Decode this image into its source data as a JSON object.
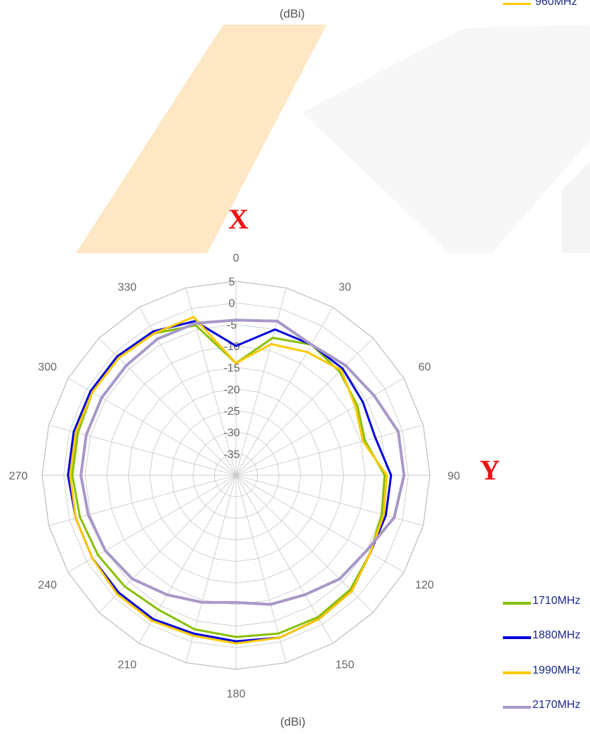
{
  "chart_data": {
    "type": "polar-line",
    "unit_label_top": "(dBi)",
    "unit_label_bottom": "(dBi)",
    "axis_marks": {
      "x": "X",
      "y": "Y"
    },
    "radial_range": [
      -40,
      5
    ],
    "radial_ticks": [
      {
        "value": 5,
        "label": "5"
      },
      {
        "value": 0,
        "label": "0"
      },
      {
        "value": -5,
        "label": "-5"
      },
      {
        "value": -10,
        "label": "-10"
      },
      {
        "value": -15,
        "label": "-15"
      },
      {
        "value": -20,
        "label": "-20"
      },
      {
        "value": -25,
        "label": "-25"
      },
      {
        "value": -30,
        "label": "-30"
      },
      {
        "value": -35,
        "label": "-35"
      }
    ],
    "angle_step": 15,
    "angle_tick_labels": [
      {
        "angle": 0,
        "label": "0"
      },
      {
        "angle": 30,
        "label": "30"
      },
      {
        "angle": 60,
        "label": "60"
      },
      {
        "angle": 90,
        "label": "90"
      },
      {
        "angle": 120,
        "label": "120"
      },
      {
        "angle": 150,
        "label": "150"
      },
      {
        "angle": 180,
        "label": "180"
      },
      {
        "angle": 210,
        "label": "210"
      },
      {
        "angle": 240,
        "label": "240"
      },
      {
        "angle": 270,
        "label": "270"
      },
      {
        "angle": 300,
        "label": "300"
      },
      {
        "angle": 330,
        "label": "330"
      }
    ],
    "angles": [
      0,
      15,
      30,
      45,
      60,
      75,
      90,
      105,
      120,
      135,
      150,
      165,
      180,
      195,
      210,
      225,
      240,
      255,
      270,
      285,
      300,
      315,
      330,
      345
    ],
    "partial_legend_top": {
      "label": "960MHz",
      "color": "#ffcc00"
    },
    "series": [
      {
        "name": "1710MHz",
        "label": "1710MHz",
        "color": "#88c000",
        "values": [
          -14,
          -7,
          -5,
          -6,
          -7.5,
          -9,
          -5.5,
          -5,
          -4,
          -2.5,
          -2,
          -2,
          -2.5,
          -3,
          -4,
          -3.5,
          -3,
          -2.5,
          -2,
          -2,
          -1.5,
          -1.5,
          -2,
          -4
        ]
      },
      {
        "name": "1880MHz",
        "label": "1880MHz",
        "color": "#0000dd",
        "values": [
          -10,
          -5,
          -5,
          -5,
          -6,
          -6.5,
          -4,
          -4,
          -4,
          -2,
          -1.5,
          -1,
          -1.5,
          -2,
          -1.5,
          -1.5,
          -1.5,
          -1.5,
          -1,
          -1,
          -1,
          -1,
          -1.5,
          -3
        ]
      },
      {
        "name": "1990MHz",
        "label": "1990MHz",
        "color": "#ffc800",
        "values": [
          -14,
          -8.5,
          -7,
          -5.5,
          -8,
          -9.5,
          -5,
          -4.5,
          -4,
          -2,
          -1.5,
          -1,
          -1,
          -1.5,
          -1,
          -1,
          -1.5,
          -1.5,
          -1.5,
          -1.5,
          -1.5,
          -1.5,
          -2,
          -2
        ]
      },
      {
        "name": "2170MHz",
        "label": "2170MHz",
        "color": "#a898c8",
        "values": [
          -4,
          -3,
          -5,
          -4,
          -3,
          -1,
          -1,
          -2,
          -5,
          -6,
          -8,
          -9,
          -10.5,
          -9.5,
          -8,
          -6,
          -5,
          -4.5,
          -4,
          -4,
          -4,
          -4,
          -3.5,
          -3.5
        ]
      }
    ]
  }
}
